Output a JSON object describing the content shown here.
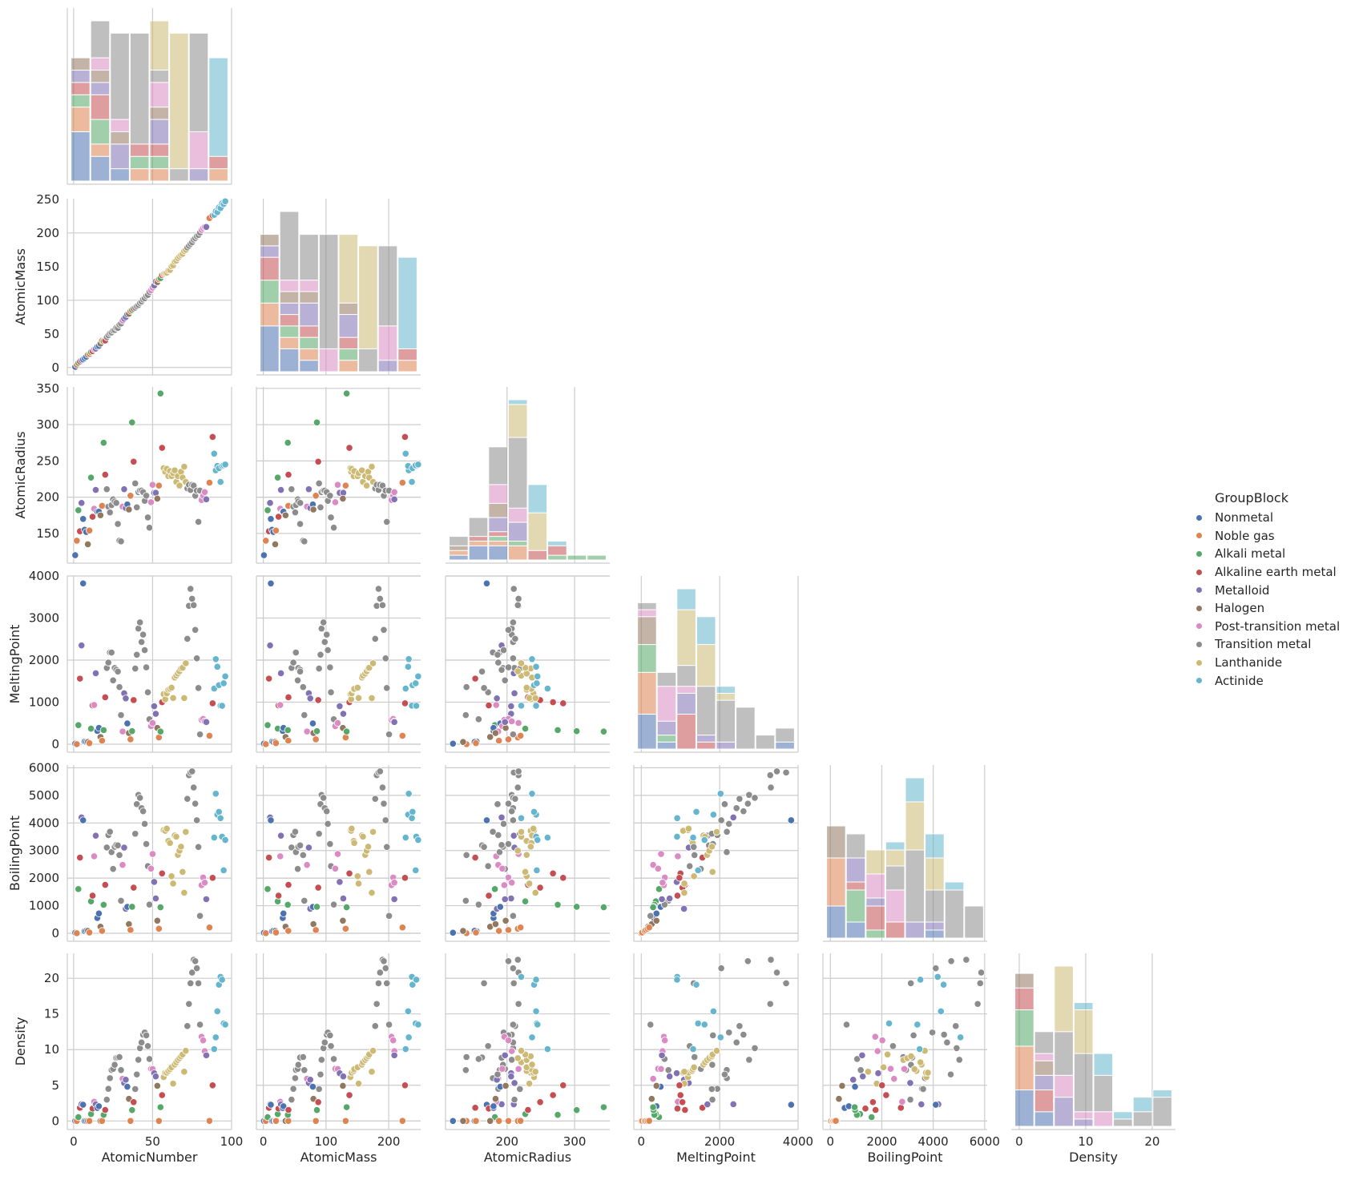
{
  "chart_data": {
    "type": "scatter",
    "kind": "pairplot-corner",
    "variables": [
      "AtomicNumber",
      "AtomicMass",
      "AtomicRadius",
      "MeltingPoint",
      "BoilingPoint",
      "Density"
    ],
    "axis_ranges": {
      "AtomicNumber": [
        -4,
        100
      ],
      "AtomicMass": [
        -11,
        251
      ],
      "AtomicRadius": [
        109,
        352
      ],
      "MeltingPoint": [
        -190,
        4000
      ],
      "BoilingPoint": [
        -290,
        6100
      ],
      "Density": [
        -1.2,
        23.5
      ]
    },
    "ticks": {
      "AtomicNumber": [
        0,
        50,
        100
      ],
      "AtomicMass": [
        0,
        100,
        200
      ],
      "AtomicRadius": [
        200,
        300
      ],
      "MeltingPoint": [
        0,
        2000,
        4000
      ],
      "BoilingPoint": [
        0,
        2000,
        4000,
        6000
      ],
      "Density": [
        0,
        10,
        20
      ]
    },
    "ytick_labels": {
      "AtomicMass": [
        0,
        50,
        100,
        150,
        200,
        250
      ],
      "AtomicRadius": [
        150,
        200,
        250,
        300,
        350
      ],
      "MeltingPoint": [
        0,
        1000,
        2000,
        3000,
        4000
      ],
      "BoilingPoint": [
        0,
        1000,
        2000,
        3000,
        4000,
        5000,
        6000
      ],
      "Density": [
        0,
        5,
        10,
        15,
        20
      ]
    },
    "hue": "GroupBlock",
    "legend_title": "GroupBlock",
    "legend_position": "right",
    "grid": true,
    "groups": [
      {
        "name": "Nonmetal",
        "color": "#4c72b0"
      },
      {
        "name": "Noble gas",
        "color": "#dd8452"
      },
      {
        "name": "Alkali metal",
        "color": "#55a868"
      },
      {
        "name": "Alkaline earth metal",
        "color": "#c44e52"
      },
      {
        "name": "Metalloid",
        "color": "#8172b3"
      },
      {
        "name": "Halogen",
        "color": "#937860"
      },
      {
        "name": "Post-transition metal",
        "color": "#da8bc3"
      },
      {
        "name": "Transition metal",
        "color": "#8c8c8c"
      },
      {
        "name": "Lanthanide",
        "color": "#ccb974"
      },
      {
        "name": "Actinide",
        "color": "#64b5cd"
      }
    ],
    "columns": [
      "AtomicNumber",
      "AtomicMass",
      "AtomicRadius",
      "MeltingPoint",
      "BoilingPoint",
      "Density",
      "group"
    ],
    "points": [
      [
        1,
        1.0,
        120,
        14,
        20,
        0.0001,
        0
      ],
      [
        2,
        4.0,
        140,
        1,
        4,
        0.0002,
        1
      ],
      [
        3,
        6.9,
        182,
        454,
        1603,
        0.53,
        2
      ],
      [
        4,
        9.0,
        153,
        1560,
        2742,
        1.85,
        3
      ],
      [
        5,
        10.8,
        192,
        2349,
        4200,
        2.34,
        4
      ],
      [
        6,
        12.0,
        170,
        3823,
        4098,
        2.27,
        0
      ],
      [
        7,
        14.0,
        155,
        63,
        77,
        0.001,
        0
      ],
      [
        8,
        16.0,
        152,
        54,
        90,
        0.001,
        0
      ],
      [
        9,
        19.0,
        135,
        54,
        85,
        0.002,
        5
      ],
      [
        10,
        20.2,
        154,
        25,
        27,
        0.001,
        1
      ],
      [
        11,
        23.0,
        227,
        371,
        1156,
        0.97,
        2
      ],
      [
        12,
        24.3,
        173,
        923,
        1363,
        1.74,
        3
      ],
      [
        13,
        27.0,
        184,
        933,
        2792,
        2.7,
        6
      ],
      [
        14,
        28.1,
        210,
        1687,
        3538,
        2.33,
        4
      ],
      [
        15,
        31.0,
        180,
        317,
        554,
        1.82,
        0
      ],
      [
        16,
        32.1,
        180,
        388,
        718,
        2.07,
        0
      ],
      [
        17,
        35.5,
        175,
        172,
        239,
        0.003,
        5
      ],
      [
        18,
        39.9,
        188,
        84,
        87,
        0.002,
        1
      ],
      [
        19,
        39.1,
        275,
        336,
        1032,
        0.86,
        2
      ],
      [
        20,
        40.1,
        231,
        1115,
        1757,
        1.55,
        3
      ],
      [
        21,
        45.0,
        211,
        1814,
        3109,
        2.99,
        7
      ],
      [
        22,
        47.9,
        187,
        1941,
        3560,
        4.5,
        7
      ],
      [
        23,
        50.9,
        179,
        2183,
        3680,
        6.0,
        7
      ],
      [
        24,
        52.0,
        189,
        2180,
        2944,
        7.15,
        7
      ],
      [
        25,
        54.9,
        197,
        1519,
        2334,
        7.3,
        7
      ],
      [
        26,
        55.8,
        194,
        1811,
        3134,
        7.87,
        7
      ],
      [
        27,
        58.9,
        192,
        1768,
        3200,
        8.86,
        7
      ],
      [
        28,
        58.7,
        163,
        1728,
        3186,
        8.9,
        7
      ],
      [
        29,
        63.5,
        140,
        1358,
        2835,
        8.96,
        7
      ],
      [
        30,
        65.4,
        139,
        693,
        1180,
        7.13,
        7
      ],
      [
        31,
        69.7,
        187,
        303,
        2477,
        5.91,
        6
      ],
      [
        32,
        72.6,
        211,
        1211,
        3106,
        5.32,
        4
      ],
      [
        33,
        74.9,
        185,
        1090,
        887,
        5.78,
        4
      ],
      [
        34,
        79.0,
        190,
        494,
        958,
        4.8,
        0
      ],
      [
        35,
        79.9,
        183,
        266,
        332,
        3.1,
        5
      ],
      [
        36,
        83.8,
        202,
        116,
        120,
        0.004,
        1
      ],
      [
        37,
        85.5,
        303,
        312,
        961,
        1.53,
        2
      ],
      [
        38,
        87.6,
        249,
        1050,
        1655,
        2.64,
        3
      ],
      [
        39,
        88.9,
        219,
        1799,
        3609,
        4.47,
        7
      ],
      [
        40,
        91.2,
        186,
        2128,
        4682,
        6.52,
        7
      ],
      [
        41,
        92.9,
        207,
        2750,
        5017,
        8.57,
        7
      ],
      [
        42,
        96.0,
        209,
        2896,
        4912,
        10.2,
        7
      ],
      [
        43,
        98.0,
        209,
        2430,
        4538,
        11.0,
        7
      ],
      [
        44,
        101.1,
        207,
        2607,
        4423,
        12.1,
        7
      ],
      [
        45,
        102.9,
        195,
        2237,
        3968,
        12.4,
        7
      ],
      [
        46,
        106.4,
        202,
        1828,
        3236,
        12.0,
        7
      ],
      [
        47,
        107.9,
        172,
        1235,
        2435,
        10.5,
        7
      ],
      [
        48,
        112.4,
        158,
        594,
        1040,
        8.69,
        7
      ],
      [
        49,
        114.8,
        193,
        430,
        2345,
        7.31,
        6
      ],
      [
        50,
        118.7,
        217,
        505,
        2875,
        7.29,
        6
      ],
      [
        51,
        121.8,
        206,
        904,
        1860,
        6.69,
        4
      ],
      [
        52,
        127.6,
        206,
        723,
        1261,
        6.24,
        4
      ],
      [
        53,
        126.9,
        198,
        387,
        457,
        4.93,
        5
      ],
      [
        54,
        131.3,
        216,
        161,
        165,
        0.006,
        1
      ],
      [
        55,
        132.9,
        343,
        302,
        944,
        1.93,
        2
      ],
      [
        56,
        137.3,
        268,
        1000,
        2170,
        3.62,
        3
      ],
      [
        57,
        138.9,
        240,
        1193,
        3737,
        6.15,
        8
      ],
      [
        58,
        140.1,
        235,
        1068,
        3716,
        6.77,
        8
      ],
      [
        59,
        140.9,
        239,
        1208,
        3793,
        6.77,
        8
      ],
      [
        60,
        144.2,
        229,
        1297,
        3347,
        7.01,
        8
      ],
      [
        61,
        145.0,
        236,
        1315,
        3273,
        7.26,
        8
      ],
      [
        62,
        150.4,
        229,
        1345,
        2067,
        7.52,
        8
      ],
      [
        63,
        152.0,
        233,
        1099,
        1802,
        5.24,
        8
      ],
      [
        64,
        157.3,
        237,
        1585,
        3546,
        7.9,
        8
      ],
      [
        65,
        158.9,
        221,
        1629,
        3503,
        8.23,
        8
      ],
      [
        66,
        162.5,
        229,
        1680,
        2840,
        8.55,
        8
      ],
      [
        67,
        164.9,
        216,
        1734,
        2993,
        8.8,
        8
      ],
      [
        68,
        167.3,
        235,
        1802,
        3141,
        9.07,
        8
      ],
      [
        69,
        168.9,
        227,
        1818,
        2223,
        9.32,
        8
      ],
      [
        70,
        173.0,
        242,
        1097,
        1469,
        6.9,
        8
      ],
      [
        71,
        175.0,
        221,
        1925,
        3675,
        9.84,
        8
      ],
      [
        72,
        178.5,
        212,
        2506,
        4876,
        13.3,
        7
      ],
      [
        73,
        180.9,
        217,
        3290,
        5731,
        16.4,
        7
      ],
      [
        74,
        183.8,
        210,
        3695,
        5828,
        19.3,
        7
      ],
      [
        75,
        186.2,
        217,
        3459,
        5869,
        20.8,
        7
      ],
      [
        76,
        190.2,
        216,
        3306,
        5285,
        22.6,
        7
      ],
      [
        77,
        192.2,
        202,
        2719,
        4701,
        22.4,
        7
      ],
      [
        78,
        195.1,
        209,
        2041,
        4098,
        21.4,
        7
      ],
      [
        79,
        197.0,
        166,
        1337,
        3129,
        19.3,
        7
      ],
      [
        80,
        200.6,
        209,
        234,
        630,
        13.5,
        7
      ],
      [
        81,
        204.4,
        196,
        577,
        1746,
        11.8,
        6
      ],
      [
        82,
        207.2,
        202,
        601,
        2022,
        11.3,
        6
      ],
      [
        83,
        209.0,
        207,
        544,
        1837,
        9.79,
        6
      ],
      [
        84,
        209.0,
        197,
        527,
        1235,
        9.2,
        4
      ],
      [
        86,
        222.0,
        220,
        202,
        211,
        0.01,
        1
      ],
      [
        88,
        226.0,
        283,
        973,
        2010,
        5.0,
        3
      ],
      [
        89,
        227.0,
        260,
        1323,
        3471,
        10.07,
        9
      ],
      [
        90,
        232.0,
        237,
        2023,
        5061,
        11.72,
        9
      ],
      [
        91,
        231.0,
        243,
        1841,
        4300,
        15.37,
        9
      ],
      [
        92,
        238.0,
        240,
        1405,
        4404,
        19.1,
        9
      ],
      [
        93,
        237.0,
        221,
        917,
        4175,
        20.2,
        9
      ],
      [
        94,
        244.0,
        243,
        913,
        3501,
        19.8,
        9
      ],
      [
        95,
        243.0,
        244,
        1449,
        2284,
        13.67,
        9
      ],
      [
        96,
        247.0,
        245,
        1613,
        3383,
        13.51,
        9
      ]
    ]
  },
  "legend": {
    "title": "GroupBlock",
    "items": [
      {
        "label": "Nonmetal",
        "color": "#4c72b0"
      },
      {
        "label": "Noble gas",
        "color": "#dd8452"
      },
      {
        "label": "Alkali metal",
        "color": "#55a868"
      },
      {
        "label": "Alkaline earth metal",
        "color": "#c44e52"
      },
      {
        "label": "Metalloid",
        "color": "#8172b3"
      },
      {
        "label": "Halogen",
        "color": "#937860"
      },
      {
        "label": "Post-transition metal",
        "color": "#da8bc3"
      },
      {
        "label": "Transition metal",
        "color": "#8c8c8c"
      },
      {
        "label": "Lanthanide",
        "color": "#ccb974"
      },
      {
        "label": "Actinide",
        "color": "#64b5cd"
      }
    ]
  }
}
